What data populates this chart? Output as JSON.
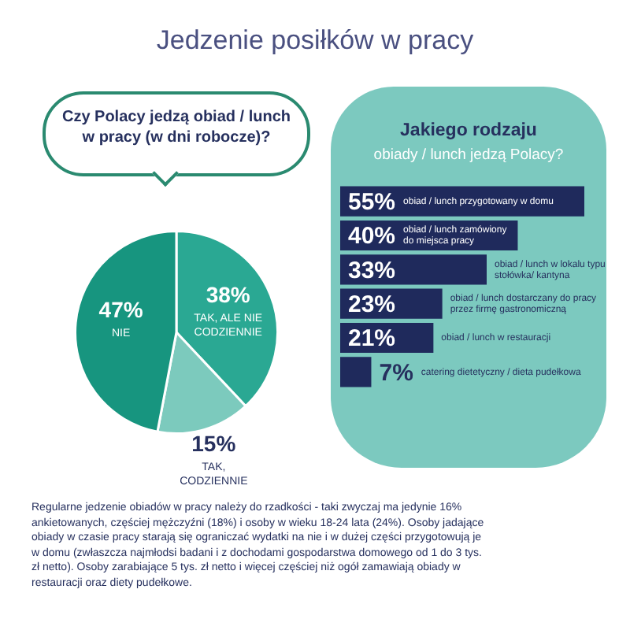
{
  "chart_data": [
    {
      "type": "pie",
      "title": "Jedzenie posiłków w pracy",
      "subtitle": "Czy Polacy jedzą obiad / lunch w pracy (w dni robocze)?",
      "categories": [
        "TAK, ALE NIE CODZIENNIE",
        "TAK, CODZIENNIE",
        "NIE"
      ],
      "values": [
        38,
        15,
        47
      ],
      "value_labels": [
        "38%",
        "15%",
        "47%"
      ],
      "colors": [
        "#2aa893",
        "#7ccabd",
        "#17957f"
      ],
      "annotations": [
        "Regularne jedzenie obiadów w pracy należy do rzadkości - taki zwyczaj ma jedynie 16% ankietowanych, częściej mężczyźni (18%) i osoby w wieku 18-24 lata (24%). Osoby jadające obiady w czasie pracy starają się ograniczać wydatki na nie i w dużej części przygotowują je w domu (zwłaszcza najmłodsi badani i z dochodami gospodarstwa domowego od 1 do 3 tys. zł netto). Osoby zarabiające 5 tys. zł netto i więcej częściej niż ogół zamawiają obiady w restauracji oraz diety pudełkowe."
      ]
    },
    {
      "type": "bar",
      "orientation": "horizontal",
      "title": "Jakiego rodzaju",
      "subtitle": "obiady / lunch jedzą Polacy?",
      "categories": [
        "obiad / lunch przygotowany w domu",
        "obiad / lunch zamówiony do miejsca pracy",
        "obiad / lunch w lokalu typu stołówka/ kantyna",
        "obiad / lunch dostarczany do pracy przez firmę gastronomiczną",
        "obiad / lunch w restauracji",
        "catering dietetyczny / dieta pudełkowa"
      ],
      "series": [
        {
          "color": "#1f2a5c",
          "values": [
            55,
            40,
            33,
            23,
            21,
            7
          ],
          "value_labels": [
            "55%",
            "40%",
            "33%",
            "23%",
            "21%",
            "7%"
          ]
        }
      ]
    }
  ]
}
